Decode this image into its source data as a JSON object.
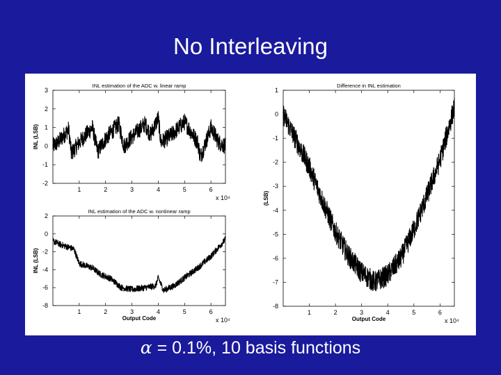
{
  "slide": {
    "title": "No Interleaving",
    "caption_symbol": "α",
    "caption_text": " = 0.1%, 10 basis functions",
    "background_color": "#1a1a9c"
  },
  "chart_data": [
    {
      "type": "line",
      "title": "INL estimation of the ADC w. linear ramp",
      "xlabel": "",
      "ylabel": "INL (LSB)",
      "x_multiplier": "x 10⁴",
      "xlim": [
        0,
        6.55
      ],
      "ylim": [
        -2,
        3
      ],
      "xticks": [
        1,
        2,
        3,
        4,
        5,
        6
      ],
      "yticks": [
        -2,
        -1,
        0,
        1,
        2,
        3
      ],
      "grid": false,
      "series": [
        {
          "x": [
            0,
            0.2,
            0.6,
            0.7,
            1.0,
            1.5,
            1.7,
            2.0,
            2.5,
            2.7,
            3.0,
            3.5,
            3.7,
            4.0,
            4.1,
            4.5,
            5.0,
            5.5,
            5.6,
            6.0,
            6.3,
            6.55
          ],
          "y": [
            0.0,
            0.2,
            0.9,
            -0.4,
            0.2,
            1.0,
            -0.3,
            0.4,
            1.2,
            0.0,
            0.5,
            1.2,
            0.6,
            1.5,
            0.2,
            0.6,
            1.3,
            0.2,
            -0.6,
            1.0,
            0.2,
            0.0
          ],
          "noise_amplitude": 0.45,
          "color": "#000000"
        }
      ]
    },
    {
      "type": "line",
      "title": "INL estimation of the ADC w. nonlinear ramp",
      "xlabel": "Output Code",
      "ylabel": "INL (LSB)",
      "x_multiplier": "x 10⁴",
      "xlim": [
        0,
        6.55
      ],
      "ylim": [
        -8,
        2
      ],
      "xticks": [
        1,
        2,
        3,
        4,
        5,
        6
      ],
      "yticks": [
        -8,
        -6,
        -4,
        -2,
        0,
        2
      ],
      "grid": false,
      "series": [
        {
          "x": [
            0,
            0.3,
            0.8,
            1.0,
            1.5,
            1.8,
            2.2,
            2.6,
            3.0,
            3.5,
            3.9,
            4.0,
            4.2,
            4.6,
            5.0,
            5.5,
            6.0,
            6.55
          ],
          "y": [
            -0.8,
            -1.2,
            -1.7,
            -3.3,
            -3.8,
            -4.5,
            -5.0,
            -6.0,
            -6.2,
            -6.0,
            -5.8,
            -4.9,
            -6.3,
            -5.8,
            -4.9,
            -3.8,
            -2.5,
            -0.6
          ],
          "noise_amplitude": 0.35,
          "color": "#000000"
        }
      ]
    },
    {
      "type": "line",
      "title": "Difference in INL estimation",
      "xlabel": "Output Code",
      "ylabel": "(LSB)",
      "x_multiplier": "x 10⁴",
      "xlim": [
        0,
        6.55
      ],
      "ylim": [
        -8,
        1
      ],
      "xticks": [
        1,
        2,
        3,
        4,
        5,
        6
      ],
      "yticks": [
        -8,
        -7,
        -6,
        -5,
        -4,
        -3,
        -2,
        -1,
        0,
        1
      ],
      "grid": false,
      "series": [
        {
          "x": [
            0,
            0.5,
            1.0,
            1.5,
            2.0,
            2.5,
            3.0,
            3.5,
            4.0,
            4.5,
            5.0,
            5.5,
            6.0,
            6.55
          ],
          "y": [
            0.0,
            -1.1,
            -2.2,
            -3.6,
            -4.9,
            -5.9,
            -6.6,
            -7.0,
            -6.7,
            -6.0,
            -4.8,
            -3.4,
            -1.9,
            0.3
          ],
          "noise_amplitude": 0.45,
          "color": "#000000"
        }
      ]
    }
  ]
}
